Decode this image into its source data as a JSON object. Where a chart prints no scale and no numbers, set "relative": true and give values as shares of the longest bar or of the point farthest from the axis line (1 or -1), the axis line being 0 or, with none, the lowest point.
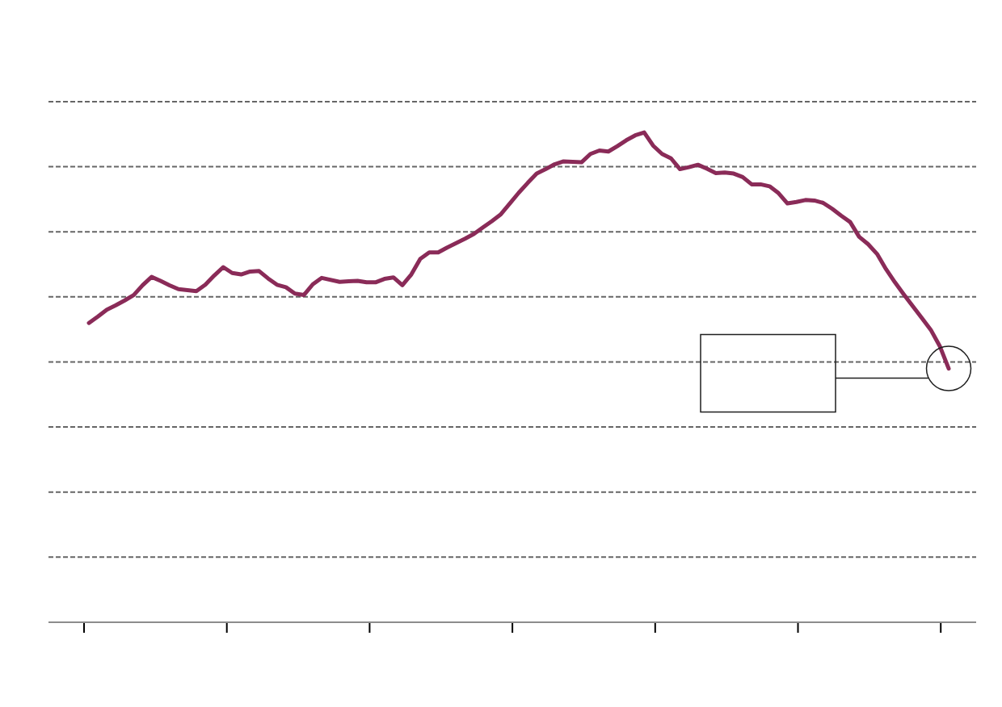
{
  "chart_data": {
    "type": "line",
    "relative": true,
    "tick_labels": false,
    "grid": "y",
    "marker": "none",
    "line_style": "solid",
    "categories": [
      null,
      null,
      null,
      null,
      null,
      null,
      null,
      null,
      null,
      null,
      null,
      null,
      null,
      null,
      null,
      null,
      null,
      null,
      null,
      null,
      null,
      null,
      null,
      null,
      null,
      null,
      null,
      null,
      null,
      null,
      null,
      null,
      null,
      null,
      null,
      null,
      null,
      null,
      null,
      null,
      null,
      null,
      null,
      null,
      null,
      null,
      null,
      null,
      null,
      null,
      null,
      null,
      null,
      null,
      null,
      null,
      null,
      null,
      null,
      null,
      null,
      null,
      null,
      null,
      null,
      null,
      null,
      null,
      null,
      null,
      null,
      null,
      null,
      null,
      null,
      null,
      null,
      null,
      null,
      null,
      null,
      null,
      null,
      null,
      null,
      null,
      null,
      null,
      null,
      null,
      null,
      null,
      null,
      null,
      null,
      null,
      null
    ],
    "series": [
      {
        "color": "#8a2b58",
        "values": [
          0.611,
          0.624,
          0.638,
          0.647,
          0.657,
          0.668,
          0.688,
          0.705,
          0.697,
          0.688,
          0.68,
          0.678,
          0.676,
          0.689,
          0.708,
          0.725,
          0.713,
          0.71,
          0.716,
          0.717,
          0.702,
          0.689,
          0.684,
          0.671,
          0.668,
          0.69,
          0.703,
          0.699,
          0.695,
          0.696,
          0.697,
          0.694,
          0.694,
          0.701,
          0.704,
          0.688,
          0.71,
          0.742,
          0.755,
          0.755,
          0.765,
          0.774,
          0.783,
          0.793,
          0.806,
          0.819,
          0.833,
          0.855,
          0.877,
          0.897,
          0.916,
          0.925,
          0.935,
          0.941,
          0.94,
          0.939,
          0.956,
          0.963,
          0.961,
          0.972,
          0.984,
          0.994,
          1.0,
          0.973,
          0.956,
          0.947,
          0.925,
          0.929,
          0.934,
          0.926,
          0.917,
          0.918,
          0.916,
          0.909,
          0.894,
          0.894,
          0.89,
          0.876,
          0.855,
          0.858,
          0.862,
          0.861,
          0.856,
          0.844,
          0.83,
          0.817,
          0.787,
          0.772,
          0.752,
          0.721,
          0.694,
          0.669,
          0.645,
          0.621,
          0.597,
          0.564,
          0.518
        ]
      }
    ]
  }
}
